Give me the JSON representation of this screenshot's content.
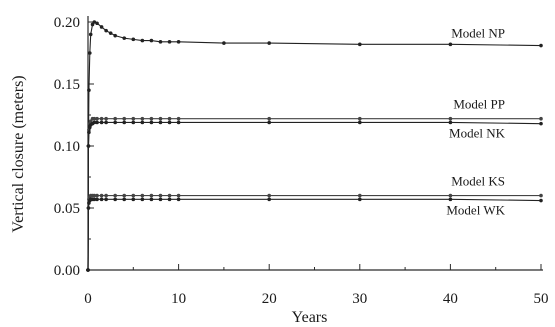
{
  "chart_data": {
    "type": "line",
    "title": "",
    "xlabel": "Years",
    "ylabel": "Vertical closure (meters)",
    "xlim": [
      0,
      50
    ],
    "ylim": [
      0,
      0.2
    ],
    "xticks": [
      0,
      10,
      20,
      30,
      40,
      50
    ],
    "yticks": [
      0.0,
      0.05,
      0.1,
      0.15,
      0.2
    ],
    "ytick_labels": [
      "0.00",
      "0.05",
      "0.10",
      "0.15",
      "0.20"
    ],
    "grid": false,
    "legend": "inline labels at right",
    "series": [
      {
        "name": "Model NP",
        "color": "#222222",
        "x": [
          0,
          0.05,
          0.1,
          0.2,
          0.3,
          0.5,
          0.7,
          1,
          1.5,
          2,
          2.5,
          3,
          4,
          5,
          6,
          7,
          8,
          9,
          10,
          15,
          20,
          30,
          40,
          50
        ],
        "y": [
          0,
          0.1,
          0.145,
          0.175,
          0.19,
          0.198,
          0.2,
          0.199,
          0.196,
          0.193,
          0.191,
          0.189,
          0.187,
          0.186,
          0.185,
          0.185,
          0.184,
          0.184,
          0.184,
          0.183,
          0.183,
          0.182,
          0.182,
          0.181
        ]
      },
      {
        "name": "Model PP",
        "color": "#444444",
        "x": [
          0,
          0.05,
          0.1,
          0.2,
          0.3,
          0.5,
          0.7,
          1,
          1.5,
          2,
          3,
          4,
          5,
          6,
          7,
          8,
          9,
          10,
          20,
          30,
          40,
          50
        ],
        "y": [
          0,
          0.1,
          0.113,
          0.118,
          0.12,
          0.122,
          0.122,
          0.122,
          0.122,
          0.122,
          0.122,
          0.122,
          0.122,
          0.122,
          0.122,
          0.122,
          0.122,
          0.122,
          0.122,
          0.122,
          0.122,
          0.122
        ]
      },
      {
        "name": "Model NK",
        "color": "#222222",
        "x": [
          0,
          0.05,
          0.1,
          0.2,
          0.3,
          0.5,
          0.7,
          1,
          1.5,
          2,
          3,
          4,
          5,
          6,
          7,
          8,
          9,
          10,
          20,
          30,
          40,
          50
        ],
        "y": [
          0,
          0.1,
          0.111,
          0.115,
          0.117,
          0.118,
          0.119,
          0.119,
          0.119,
          0.119,
          0.119,
          0.119,
          0.119,
          0.119,
          0.119,
          0.119,
          0.119,
          0.119,
          0.119,
          0.119,
          0.119,
          0.118
        ]
      },
      {
        "name": "Model KS",
        "color": "#444444",
        "x": [
          0,
          0.05,
          0.1,
          0.2,
          0.3,
          0.5,
          0.7,
          1,
          1.5,
          2,
          3,
          4,
          5,
          6,
          7,
          8,
          9,
          10,
          20,
          30,
          40,
          50
        ],
        "y": [
          0,
          0.05,
          0.057,
          0.059,
          0.06,
          0.06,
          0.06,
          0.06,
          0.06,
          0.06,
          0.06,
          0.06,
          0.06,
          0.06,
          0.06,
          0.06,
          0.06,
          0.06,
          0.06,
          0.06,
          0.06,
          0.06
        ]
      },
      {
        "name": "Model WK",
        "color": "#222222",
        "x": [
          0,
          0.05,
          0.1,
          0.2,
          0.3,
          0.5,
          0.7,
          1,
          1.5,
          2,
          3,
          4,
          5,
          6,
          7,
          8,
          9,
          10,
          20,
          30,
          40,
          50
        ],
        "y": [
          0,
          0.05,
          0.054,
          0.056,
          0.057,
          0.057,
          0.057,
          0.057,
          0.057,
          0.057,
          0.057,
          0.057,
          0.057,
          0.057,
          0.057,
          0.057,
          0.057,
          0.057,
          0.057,
          0.057,
          0.057,
          0.056
        ]
      }
    ]
  }
}
